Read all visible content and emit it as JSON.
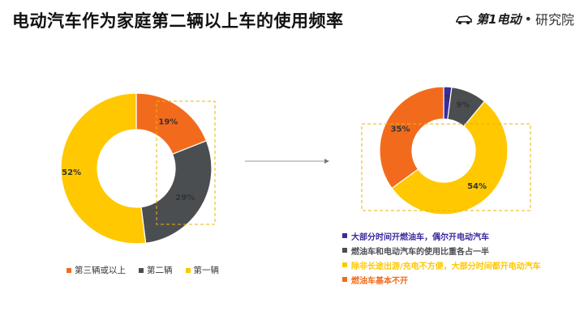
{
  "page": {
    "title": "电动汽车作为家庭第二辆以上车的使用频率"
  },
  "logo": {
    "brand": "第1电动",
    "separator": "•",
    "institute": "研究院"
  },
  "chart_data": [
    {
      "type": "pie",
      "subtype": "donut",
      "slices": [
        {
          "name": "第三辆或以上",
          "value": 19,
          "label": "19%",
          "color": "#F26B1D"
        },
        {
          "name": "第二辆",
          "value": 29,
          "label": "29%",
          "color": "#4B4E51"
        },
        {
          "name": "第一辆",
          "value": 52,
          "label": "52%",
          "color": "#FFC800"
        }
      ],
      "legend_placement": "bottom"
    },
    {
      "type": "pie",
      "subtype": "donut",
      "slices": [
        {
          "name": "大部分时间开燃油车，偶尔开电动汽车",
          "value": 2,
          "label": "2%",
          "color": "#3A2B9E"
        },
        {
          "name": "燃油车和电动汽车的使用比重各占一半",
          "value": 9,
          "label": "9%",
          "color": "#4B4E51"
        },
        {
          "name": "除非长途出游/充电不方便，大部分时间都开电动汽车",
          "value": 54,
          "label": "54%",
          "color": "#FFC800"
        },
        {
          "name": "燃油车基本不开",
          "value": 35,
          "label": "35%",
          "color": "#F26B1D"
        }
      ],
      "legend_placement": "bottom"
    }
  ]
}
